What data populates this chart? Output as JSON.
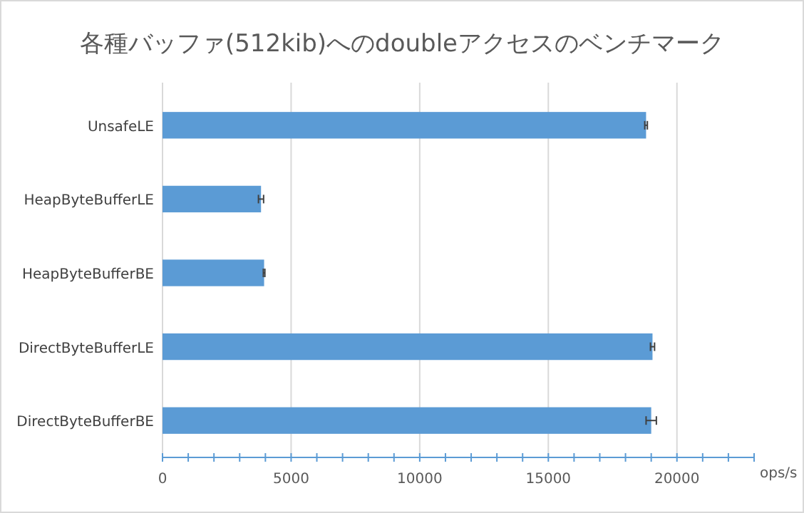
{
  "chart_data": {
    "type": "bar",
    "orientation": "horizontal",
    "title": "各種バッファ(512kib)へのdoubleアクセスのベンチマーク",
    "xlabel": "ops/s",
    "categories": [
      "UnsafeLE",
      "HeapByteBufferLE",
      "HeapByteBufferBE",
      "DirectByteBufferLE",
      "DirectByteBufferBE"
    ],
    "values": [
      18800,
      3830,
      3950,
      19050,
      19000
    ],
    "errors": [
      50,
      100,
      30,
      80,
      200
    ],
    "color": "#5b9bd5",
    "xlim": [
      0,
      23000
    ],
    "xticks": [
      0,
      {
        "value": 1000,
        "label": null
      },
      {
        "value": 2000,
        "label": null
      },
      {
        "value": 3000,
        "label": null
      },
      {
        "value": 4000,
        "label": null
      },
      5000,
      {
        "value": 6000,
        "label": null
      },
      {
        "value": 7000,
        "label": null
      },
      {
        "value": 8000,
        "label": null
      },
      {
        "value": 9000,
        "label": null
      },
      10000,
      {
        "value": 11000,
        "label": null
      },
      {
        "value": 12000,
        "label": null
      },
      {
        "value": 13000,
        "label": null
      },
      {
        "value": 14000,
        "label": null
      },
      15000,
      {
        "value": 16000,
        "label": null
      },
      {
        "value": 17000,
        "label": null
      },
      {
        "value": 18000,
        "label": null
      },
      {
        "value": 19000,
        "label": null
      },
      20000,
      {
        "value": 21000,
        "label": null
      },
      {
        "value": 22000,
        "label": null
      },
      {
        "value": 23000,
        "label": null
      }
    ],
    "grid": "x"
  }
}
